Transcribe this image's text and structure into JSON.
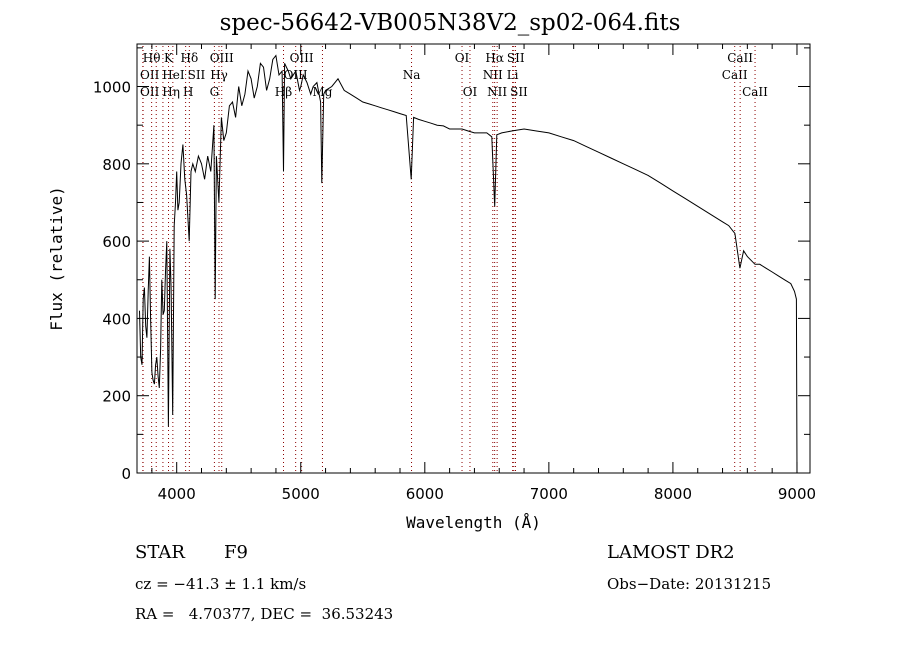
{
  "chart_data": {
    "type": "line",
    "title": "spec-56642-VB005N38V2_sp02-064.fits",
    "xlabel": "Wavelength (Å)",
    "ylabel": "Flux (relative)",
    "xlim": [
      3680,
      9105
    ],
    "ylim": [
      0,
      1110
    ],
    "xticks": [
      4000,
      5000,
      6000,
      7000,
      8000,
      9000
    ],
    "yticks": [
      0,
      200,
      400,
      600,
      800,
      1000
    ],
    "grid": false,
    "series": [
      {
        "name": "spectrum",
        "x": [
          3700,
          3710,
          3720,
          3730,
          3740,
          3750,
          3760,
          3770,
          3780,
          3790,
          3800,
          3810,
          3820,
          3830,
          3840,
          3850,
          3860,
          3870,
          3880,
          3890,
          3900,
          3910,
          3920,
          3933,
          3945,
          3955,
          3968,
          3980,
          3990,
          4000,
          4010,
          4020,
          4035,
          4050,
          4065,
          4080,
          4101,
          4115,
          4130,
          4150,
          4175,
          4200,
          4225,
          4250,
          4275,
          4300,
          4310,
          4320,
          4340,
          4360,
          4380,
          4400,
          4425,
          4450,
          4475,
          4500,
          4525,
          4550,
          4575,
          4600,
          4625,
          4650,
          4675,
          4700,
          4725,
          4750,
          4775,
          4800,
          4825,
          4850,
          4861,
          4870,
          4900,
          4920,
          4960,
          4990,
          5000,
          5020,
          5050,
          5080,
          5100,
          5130,
          5160,
          5170,
          5185,
          5200,
          5250,
          5300,
          5350,
          5400,
          5450,
          5500,
          5550,
          5600,
          5650,
          5700,
          5750,
          5800,
          5850,
          5890,
          5910,
          5950,
          6000,
          6050,
          6100,
          6150,
          6200,
          6250,
          6300,
          6350,
          6400,
          6450,
          6500,
          6540,
          6563,
          6580,
          6620,
          6700,
          6800,
          6900,
          7000,
          7100,
          7200,
          7300,
          7400,
          7500,
          7600,
          7700,
          7800,
          7900,
          8000,
          8100,
          8200,
          8300,
          8400,
          8450,
          8500,
          8540,
          8570,
          8600,
          8662,
          8700,
          8750,
          8800,
          8850,
          8900,
          8950,
          8980,
          8995,
          9000
        ],
        "values": [
          420,
          300,
          280,
          450,
          480,
          380,
          350,
          470,
          560,
          400,
          260,
          240,
          230,
          280,
          300,
          250,
          220,
          320,
          500,
          410,
          420,
          520,
          600,
          120,
          580,
          480,
          150,
          640,
          700,
          780,
          680,
          700,
          800,
          850,
          760,
          720,
          600,
          780,
          800,
          780,
          820,
          800,
          760,
          820,
          780,
          900,
          450,
          820,
          700,
          920,
          860,
          880,
          950,
          960,
          920,
          1000,
          950,
          980,
          1040,
          1020,
          970,
          1000,
          1060,
          1050,
          990,
          1020,
          1070,
          1080,
          1030,
          1040,
          780,
          1060,
          1040,
          1020,
          1040,
          990,
          1000,
          1030,
          1010,
          980,
          1000,
          1010,
          960,
          750,
          980,
          990,
          1000,
          1020,
          990,
          980,
          970,
          960,
          955,
          950,
          945,
          940,
          935,
          930,
          925,
          760,
          920,
          915,
          910,
          905,
          900,
          898,
          890,
          890,
          890,
          885,
          880,
          880,
          880,
          870,
          690,
          875,
          880,
          885,
          890,
          885,
          880,
          870,
          860,
          845,
          830,
          815,
          800,
          785,
          770,
          750,
          730,
          710,
          690,
          670,
          650,
          640,
          620,
          530,
          575,
          560,
          540,
          540,
          530,
          520,
          510,
          500,
          490,
          470,
          450,
          0
        ]
      }
    ],
    "lines": [
      {
        "label": "OII",
        "wl": 3727,
        "row": 2
      },
      {
        "label": "OII",
        "wl": 3729,
        "row": 3
      },
      {
        "label": "Hθ",
        "wl": 3798,
        "row": 1
      },
      {
        "label": "Hη",
        "wl": 3835,
        "row": 3
      },
      {
        "label": "HeI",
        "wl": 3889,
        "row": 2
      },
      {
        "label": "K",
        "wl": 3934,
        "row": 1
      },
      {
        "label": "H",
        "wl": 3969,
        "row": 3
      },
      {
        "label": "SII",
        "wl": 4072,
        "row": 2
      },
      {
        "label": "Hδ",
        "wl": 4102,
        "row": 1
      },
      {
        "label": "G",
        "wl": 4304,
        "row": 3
      },
      {
        "label": "Hγ",
        "wl": 4341,
        "row": 2
      },
      {
        "label": "OIII",
        "wl": 4363,
        "row": 1
      },
      {
        "label": "Hβ",
        "wl": 4861,
        "row": 3
      },
      {
        "label": "OIII",
        "wl": 4959,
        "row": 2
      },
      {
        "label": "OIII",
        "wl": 5007,
        "row": 1
      },
      {
        "label": "Mg",
        "wl": 5175,
        "row": 3
      },
      {
        "label": "Na",
        "wl": 5893,
        "row": 2
      },
      {
        "label": "OI",
        "wl": 6300,
        "row": 1
      },
      {
        "label": "OI",
        "wl": 6364,
        "row": 3
      },
      {
        "label": "NII",
        "wl": 6548,
        "row": 2
      },
      {
        "label": "Hα",
        "wl": 6563,
        "row": 1
      },
      {
        "label": "NII",
        "wl": 6583,
        "row": 3
      },
      {
        "label": "Li",
        "wl": 6708,
        "row": 2
      },
      {
        "label": "SII",
        "wl": 6717,
        "row": 1
      },
      {
        "label": "SII",
        "wl": 6731,
        "row": 3
      },
      {
        "label": "CaII",
        "wl": 8498,
        "row": 2
      },
      {
        "label": "CaII",
        "wl": 8542,
        "row": 1
      },
      {
        "label": "CaII",
        "wl": 8662,
        "row": 3
      }
    ],
    "line_color": "#8b0000"
  },
  "info": {
    "class": "STAR",
    "subclass": "F9",
    "survey": "LAMOST DR2",
    "cz": "cz = −41.3 ± 1.1 km/s",
    "obsdate": "Obs−Date: 20131215",
    "radec": "RA =   4.70377, DEC =  36.53243"
  }
}
